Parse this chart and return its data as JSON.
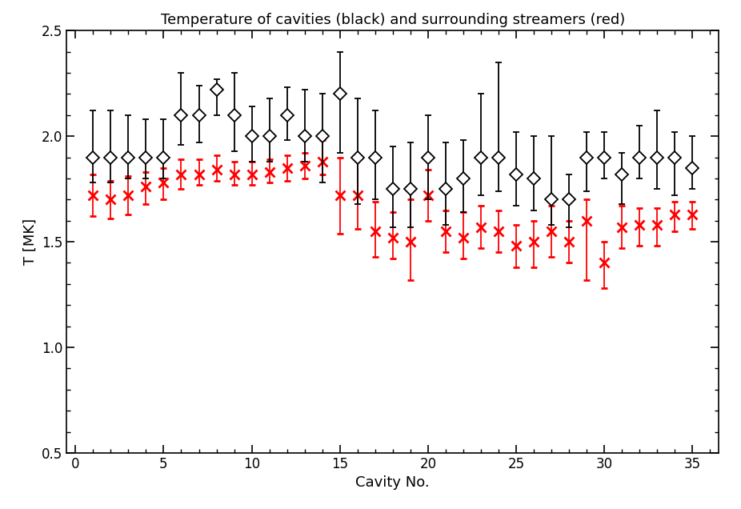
{
  "title": "Temperature of cavities (black) and surrounding streamers (red)",
  "xlabel": "Cavity No.",
  "ylabel": "T [MK]",
  "ylim": [
    0.5,
    2.5
  ],
  "xlim": [
    -0.5,
    36.5
  ],
  "xticks": [
    0,
    5,
    10,
    15,
    20,
    25,
    30,
    35
  ],
  "yticks": [
    0.5,
    1.0,
    1.5,
    2.0,
    2.5
  ],
  "cavity_x": [
    1,
    2,
    3,
    4,
    5,
    6,
    7,
    8,
    9,
    10,
    11,
    12,
    13,
    14,
    15,
    16,
    17,
    18,
    19,
    20,
    21,
    22,
    23,
    24,
    25,
    26,
    27,
    28,
    29,
    30,
    31,
    32,
    33,
    34,
    35
  ],
  "cavity_y": [
    1.9,
    1.9,
    1.9,
    1.9,
    1.9,
    2.1,
    2.1,
    2.22,
    2.1,
    2.0,
    2.0,
    2.1,
    2.0,
    2.0,
    2.2,
    1.9,
    1.9,
    1.75,
    1.75,
    1.9,
    1.75,
    1.8,
    1.9,
    1.9,
    1.82,
    1.8,
    1.7,
    1.7,
    1.9,
    1.9,
    1.82,
    1.9,
    1.9,
    1.9,
    1.85
  ],
  "cavity_yerr_lo": [
    0.12,
    0.12,
    0.1,
    0.1,
    0.1,
    0.14,
    0.13,
    0.12,
    0.17,
    0.12,
    0.12,
    0.12,
    0.12,
    0.22,
    0.28,
    0.22,
    0.2,
    0.18,
    0.18,
    0.2,
    0.17,
    0.16,
    0.18,
    0.16,
    0.15,
    0.15,
    0.12,
    0.13,
    0.16,
    0.1,
    0.14,
    0.1,
    0.15,
    0.18,
    0.1
  ],
  "cavity_yerr_hi": [
    0.22,
    0.22,
    0.2,
    0.18,
    0.18,
    0.2,
    0.14,
    0.05,
    0.2,
    0.14,
    0.18,
    0.13,
    0.22,
    0.2,
    0.2,
    0.28,
    0.22,
    0.2,
    0.22,
    0.2,
    0.22,
    0.18,
    0.3,
    0.45,
    0.2,
    0.2,
    0.3,
    0.12,
    0.12,
    0.12,
    0.1,
    0.15,
    0.22,
    0.12,
    0.15
  ],
  "streamer_x": [
    1,
    2,
    3,
    4,
    5,
    6,
    7,
    8,
    9,
    10,
    11,
    12,
    13,
    14,
    15,
    16,
    17,
    18,
    19,
    20,
    21,
    22,
    23,
    24,
    25,
    26,
    27,
    28,
    29,
    30,
    31,
    32,
    33,
    34,
    35
  ],
  "streamer_y": [
    1.72,
    1.7,
    1.72,
    1.76,
    1.78,
    1.82,
    1.82,
    1.84,
    1.82,
    1.82,
    1.83,
    1.85,
    1.86,
    1.88,
    1.72,
    1.72,
    1.55,
    1.52,
    1.5,
    1.72,
    1.55,
    1.52,
    1.57,
    1.55,
    1.48,
    1.5,
    1.55,
    1.5,
    1.6,
    1.4,
    1.57,
    1.58,
    1.58,
    1.63,
    1.63
  ],
  "streamer_yerr_lo": [
    0.1,
    0.09,
    0.09,
    0.08,
    0.08,
    0.07,
    0.05,
    0.05,
    0.05,
    0.05,
    0.05,
    0.06,
    0.06,
    0.06,
    0.18,
    0.16,
    0.12,
    0.1,
    0.18,
    0.12,
    0.1,
    0.1,
    0.1,
    0.1,
    0.1,
    0.12,
    0.12,
    0.1,
    0.28,
    0.12,
    0.1,
    0.1,
    0.1,
    0.08,
    0.07
  ],
  "streamer_yerr_hi": [
    0.1,
    0.09,
    0.09,
    0.07,
    0.07,
    0.07,
    0.07,
    0.07,
    0.06,
    0.06,
    0.06,
    0.06,
    0.06,
    0.1,
    0.18,
    0.18,
    0.14,
    0.12,
    0.2,
    0.12,
    0.1,
    0.12,
    0.1,
    0.1,
    0.1,
    0.1,
    0.12,
    0.1,
    0.1,
    0.1,
    0.1,
    0.08,
    0.08,
    0.06,
    0.06
  ]
}
